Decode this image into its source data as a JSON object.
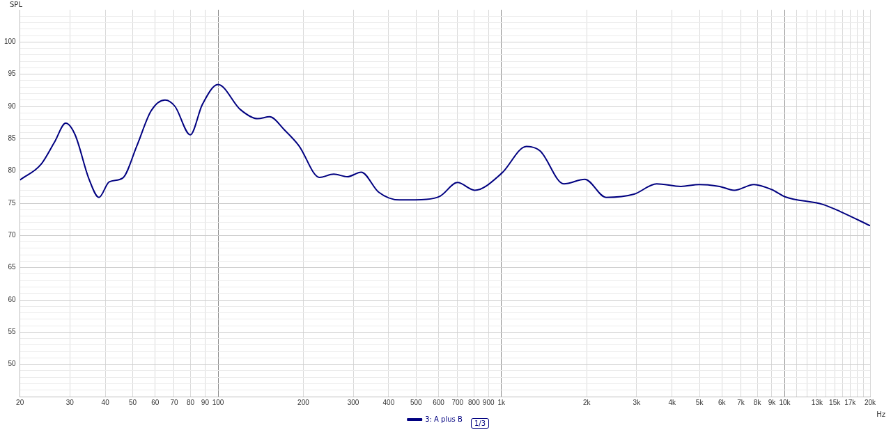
{
  "chart_data": {
    "type": "line",
    "ylabel": "SPL",
    "log": "x",
    "grid": true,
    "legend": "bottom",
    "marker": "none",
    "line_style": "solid",
    "xlim": [
      20,
      20000
    ],
    "ylim": [
      45,
      105
    ],
    "xticks": [
      20,
      30,
      40,
      50,
      60,
      70,
      80,
      90,
      100,
      200,
      300,
      400,
      500,
      600,
      700,
      800,
      900,
      {
        "value": 1000,
        "label": "1k"
      },
      {
        "value": 2000,
        "label": "2k"
      },
      {
        "value": 3000,
        "label": "3k"
      },
      {
        "value": 4000,
        "label": "4k"
      },
      {
        "value": 5000,
        "label": "5k"
      },
      {
        "value": 6000,
        "label": "6k"
      },
      {
        "value": 7000,
        "label": "7k"
      },
      {
        "value": 8000,
        "label": "8k"
      },
      {
        "value": 9000,
        "label": "9k"
      },
      {
        "value": 10000,
        "label": "10k"
      },
      {
        "value": 11000,
        "label": null
      },
      {
        "value": 12000,
        "label": null
      },
      {
        "value": 13000,
        "label": "13k"
      },
      {
        "value": 14000,
        "label": null
      },
      {
        "value": 15000,
        "label": "15k"
      },
      {
        "value": 16000,
        "label": null
      },
      {
        "value": 17000,
        "label": "17k"
      },
      {
        "value": 18000,
        "label": null
      },
      {
        "value": 19000,
        "label": null
      },
      {
        "value": 20000,
        "label": "20k"
      }
    ],
    "xlabel": "Hz",
    "yticks": [
      {
        "value": 46,
        "label": null
      },
      {
        "value": 47,
        "label": null
      },
      {
        "value": 48,
        "label": null
      },
      {
        "value": 49,
        "label": null
      },
      50,
      {
        "value": 51,
        "label": null
      },
      {
        "value": 52,
        "label": null
      },
      {
        "value": 53,
        "label": null
      },
      {
        "value": 54,
        "label": null
      },
      55,
      {
        "value": 56,
        "label": null
      },
      {
        "value": 57,
        "label": null
      },
      {
        "value": 58,
        "label": null
      },
      {
        "value": 59,
        "label": null
      },
      60,
      {
        "value": 61,
        "label": null
      },
      {
        "value": 62,
        "label": null
      },
      {
        "value": 63,
        "label": null
      },
      {
        "value": 64,
        "label": null
      },
      65,
      {
        "value": 66,
        "label": null
      },
      {
        "value": 67,
        "label": null
      },
      {
        "value": 68,
        "label": null
      },
      {
        "value": 69,
        "label": null
      },
      70,
      {
        "value": 71,
        "label": null
      },
      {
        "value": 72,
        "label": null
      },
      {
        "value": 73,
        "label": null
      },
      {
        "value": 74,
        "label": null
      },
      75,
      {
        "value": 76,
        "label": null
      },
      {
        "value": 77,
        "label": null
      },
      {
        "value": 78,
        "label": null
      },
      {
        "value": 79,
        "label": null
      },
      80,
      {
        "value": 81,
        "label": null
      },
      {
        "value": 82,
        "label": null
      },
      {
        "value": 83,
        "label": null
      },
      {
        "value": 84,
        "label": null
      },
      85,
      {
        "value": 86,
        "label": null
      },
      {
        "value": 87,
        "label": null
      },
      {
        "value": 88,
        "label": null
      },
      {
        "value": 89,
        "label": null
      },
      90,
      {
        "value": 91,
        "label": null
      },
      {
        "value": 92,
        "label": null
      },
      {
        "value": 93,
        "label": null
      },
      {
        "value": 94,
        "label": null
      },
      95,
      {
        "value": 96,
        "label": null
      },
      {
        "value": 97,
        "label": null
      },
      {
        "value": 98,
        "label": null
      },
      {
        "value": 99,
        "label": null
      },
      100,
      {
        "value": 101,
        "label": null
      },
      {
        "value": 102,
        "label": null
      },
      {
        "value": 103,
        "label": null
      },
      {
        "value": 104,
        "label": null
      }
    ],
    "annotations": [
      "1/3"
    ],
    "series": [
      {
        "name": "3: A plus B",
        "color": "#000080",
        "x": [
          20,
          23.7,
          26.5,
          29,
          31.3,
          35,
          38,
          41.3,
          46.1,
          51.7,
          58,
          65,
          70.5,
          79.8,
          88,
          100,
          120,
          138,
          152,
          172,
          193,
          228,
          256,
          286,
          320,
          369,
          436,
          544,
          608,
          700,
          805,
          1000,
          1225,
          1370,
          1660,
          1970,
          2340,
          2940,
          3530,
          4300,
          4990,
          5890,
          6630,
          7780,
          9000,
          10000,
          13630,
          15700,
          20000
        ],
        "values": [
          78.6,
          81.0,
          84.5,
          87.4,
          85.6,
          78.8,
          75.9,
          78.3,
          78.9,
          83.9,
          89.3,
          91.0,
          90.0,
          85.6,
          90.3,
          93.4,
          89.5,
          88.1,
          88.4,
          86.3,
          83.9,
          79.0,
          79.5,
          79.1,
          79.8,
          76.7,
          75.5,
          75.6,
          76.1,
          78.2,
          77.0,
          79.6,
          83.8,
          83.1,
          78.0,
          78.7,
          75.9,
          76.4,
          78.0,
          77.6,
          77.9,
          77.6,
          77.0,
          77.9,
          77.1,
          76.0,
          74.8,
          73.7,
          71.5
        ]
      }
    ]
  }
}
